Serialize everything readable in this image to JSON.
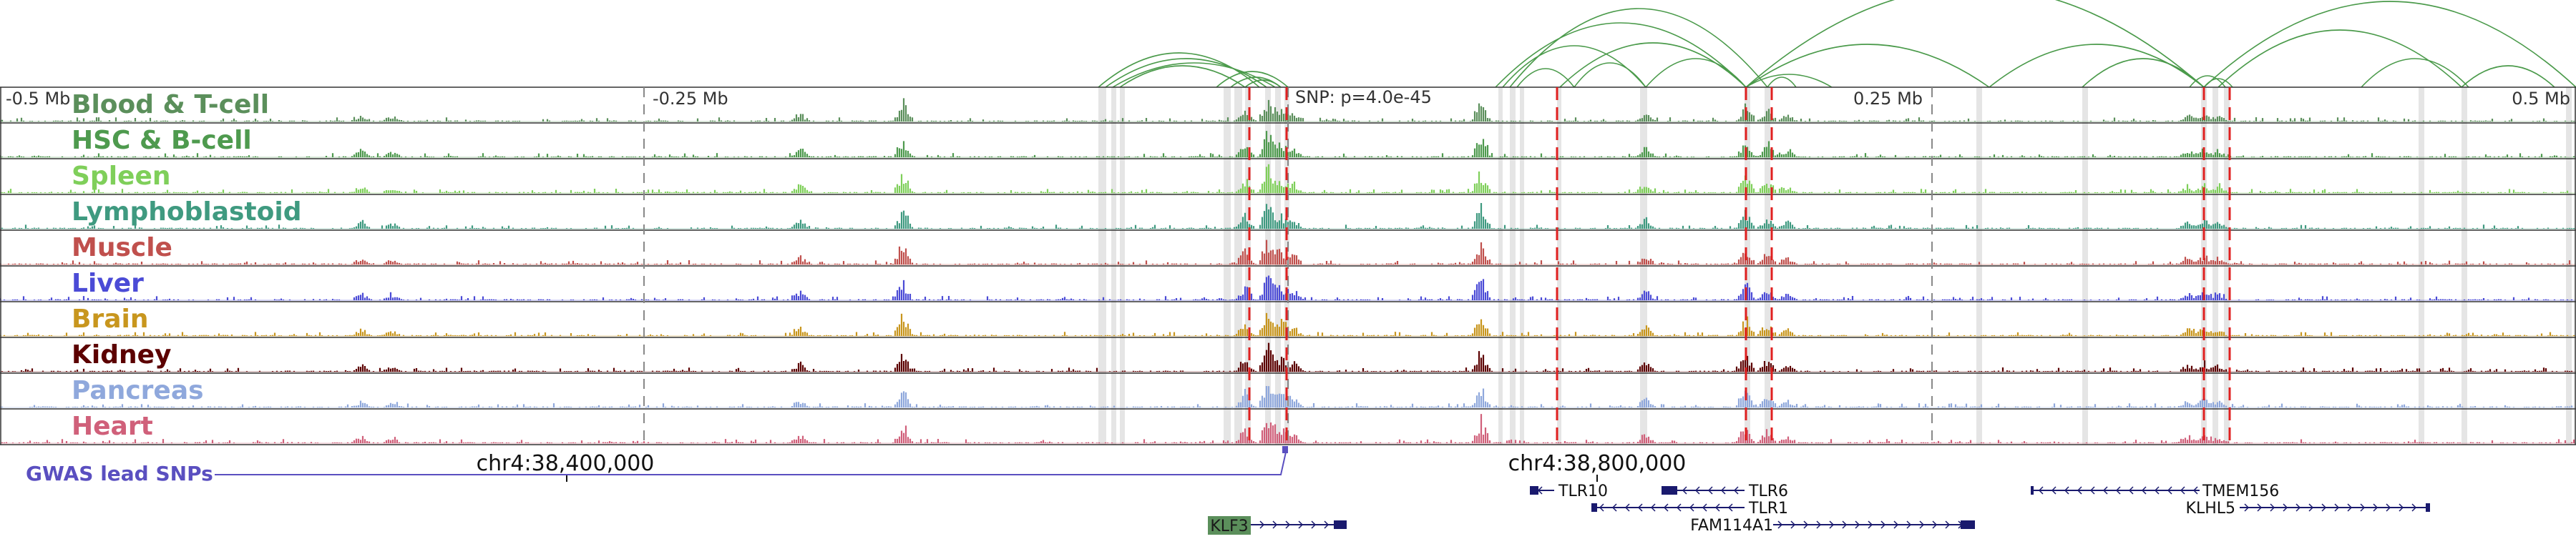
{
  "scale_labels": [
    "-0.5 Mb",
    "-0.25 Mb",
    "0.25 Mb",
    "0.5 Mb"
  ],
  "snp_label": "SNP: p=4.0e-45",
  "tracks": [
    {
      "name": "Blood & T-cell",
      "color": "#5b8f5b"
    },
    {
      "name": "HSC & B-cell",
      "color": "#4e9a4e"
    },
    {
      "name": "Spleen",
      "color": "#7fcf5a"
    },
    {
      "name": "Lymphoblastoid",
      "color": "#3f9a80"
    },
    {
      "name": "Muscle",
      "color": "#c0504d"
    },
    {
      "name": "Liver",
      "color": "#4b4bd6"
    },
    {
      "name": "Brain",
      "color": "#c8961e"
    },
    {
      "name": "Kidney",
      "color": "#5c0000"
    },
    {
      "name": "Pancreas",
      "color": "#8fa8dc"
    },
    {
      "name": "Heart",
      "color": "#d0607a"
    }
  ],
  "coordinates": [
    "chr4:38,400,000",
    "chr4:38,800,000"
  ],
  "gwas_label": "GWAS lead SNPs",
  "genes": [
    "TLR10",
    "TLR6",
    "TLR1",
    "FAM114A1",
    "TMEM156",
    "KLHL5",
    "KLF3"
  ],
  "colors": {
    "arc": "#4a9a4a",
    "snp_line": "#e02020",
    "gwas": "#5a4fc0",
    "gene": "#1a1a6e",
    "klf3_box": "#5b8f5b"
  }
}
